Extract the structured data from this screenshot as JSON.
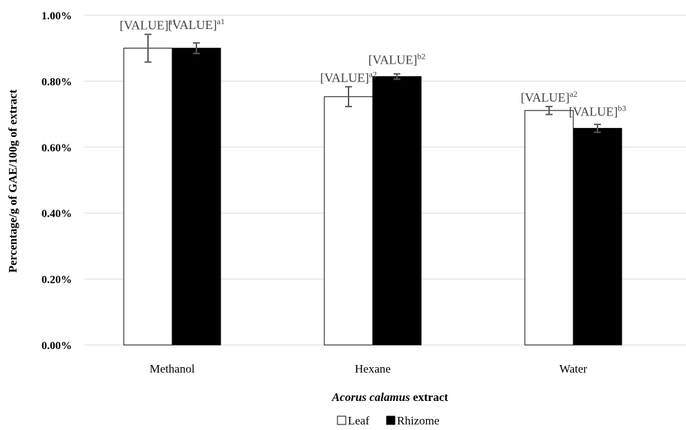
{
  "chart_data": {
    "type": "bar",
    "categories": [
      "Methanol",
      "Hexane",
      "Water"
    ],
    "series": [
      {
        "name": "Leaf",
        "values": [
          0.9,
          0.753,
          0.711
        ],
        "errors": [
          0.042,
          0.03,
          0.012
        ],
        "labels": [
          {
            "text": "[VALUE]",
            "sup": "a1"
          },
          {
            "text": "[VALUE]",
            "sup": "a2"
          },
          {
            "text": "[VALUE]",
            "sup": "a2"
          }
        ],
        "fill": "#ffffff",
        "stroke": "#000000"
      },
      {
        "name": "Rhizome",
        "values": [
          0.9,
          0.814,
          0.657
        ],
        "errors": [
          0.016,
          0.008,
          0.012
        ],
        "labels": [
          {
            "text": "[VALUE]",
            "sup": "a1"
          },
          {
            "text": "[VALUE]",
            "sup": "b2"
          },
          {
            "text": "[VALUE]",
            "sup": "b3"
          }
        ],
        "fill": "#000000",
        "stroke": "#000000"
      }
    ],
    "ylim": [
      0,
      1.0
    ],
    "yticks": [
      "0.00%",
      "0.20%",
      "0.40%",
      "0.60%",
      "0.80%",
      "1.00%"
    ],
    "ylabel": "Percentage/g of GAE/100g of extract",
    "xlabel_italic": "Acorus calamus",
    "xlabel_rest": " extract",
    "grid": true,
    "legend": "bottom",
    "gridColor": "#d9d9d9",
    "errorColor": "#595959"
  }
}
